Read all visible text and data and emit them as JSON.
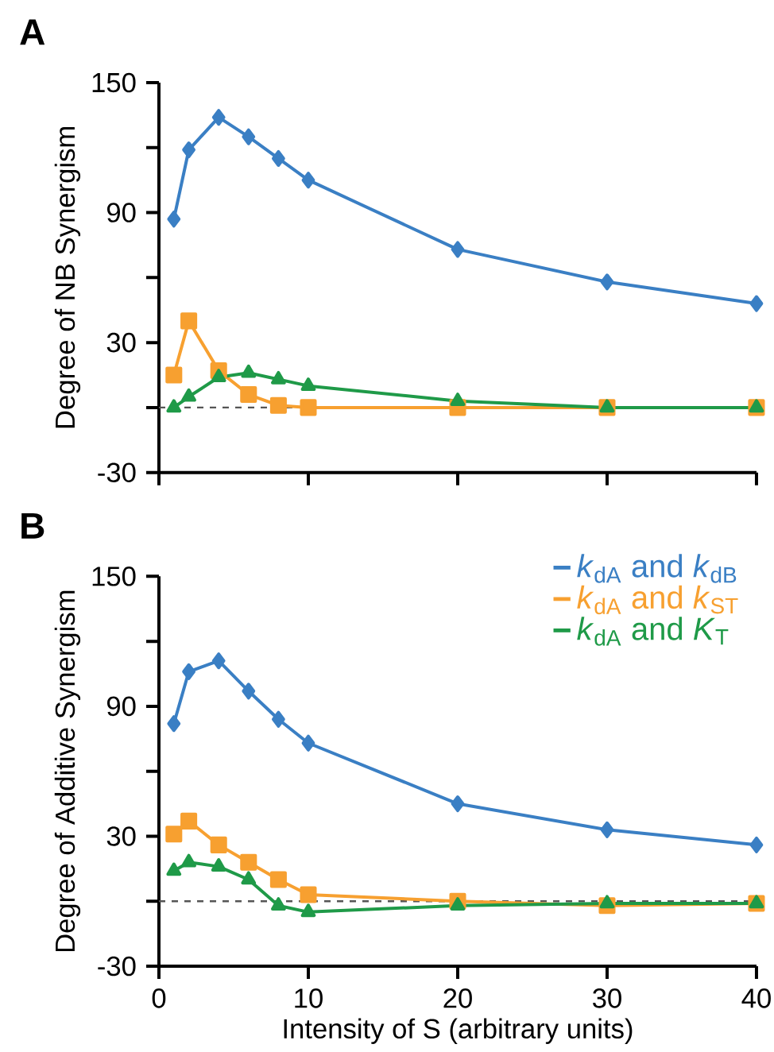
{
  "chart_data": [
    {
      "type": "line",
      "title": "A",
      "ylabel": "Degree of NB Synergism",
      "xlim": [
        0,
        40
      ],
      "xticks": [
        {
          "value": 0,
          "label": null
        },
        {
          "value": 10,
          "label": null
        },
        {
          "value": 20,
          "label": null
        },
        {
          "value": 30,
          "label": null
        },
        {
          "value": 40,
          "label": null
        }
      ],
      "ylim": [
        -30,
        150
      ],
      "yticks": [
        -30,
        {
          "value": 0,
          "label": null
        },
        30,
        {
          "value": 60,
          "label": null
        },
        90,
        {
          "value": 120,
          "label": null
        },
        150
      ],
      "tick_labels": "y",
      "grid": false,
      "legend": false,
      "x": [
        1,
        2,
        4,
        6,
        8,
        10,
        20,
        30,
        40
      ],
      "series": [
        {
          "color": "#3a7fc4",
          "marker": "diamond",
          "values": [
            87,
            119,
            134,
            125,
            115,
            105,
            73,
            58,
            48
          ]
        },
        {
          "color": "#f7a030",
          "marker": "square",
          "values": [
            15,
            40,
            17,
            6,
            1,
            0,
            0,
            0,
            0
          ]
        },
        {
          "color": "#1f9a48",
          "marker": "triangle",
          "values": [
            0,
            5,
            14,
            16,
            13,
            10,
            3,
            0,
            0
          ]
        }
      ],
      "ref_lines": [
        {
          "axis": "y",
          "value": 0,
          "color": "#555555",
          "line_style": "dashed"
        }
      ]
    },
    {
      "type": "line",
      "title": "B",
      "ylabel": "Degree of Additive Synergism",
      "xlabel": "Intensity of S (arbitrary units)",
      "xlim": [
        0,
        40
      ],
      "xticks": [
        0,
        10,
        20,
        30,
        40
      ],
      "ylim": [
        -30,
        150
      ],
      "yticks": [
        -30,
        {
          "value": 0,
          "label": null
        },
        30,
        {
          "value": 60,
          "label": null
        },
        90,
        {
          "value": 120,
          "label": null
        },
        150
      ],
      "grid": false,
      "legend": "top right",
      "x": [
        1,
        2,
        4,
        6,
        8,
        10,
        20,
        30,
        40
      ],
      "series": [
        {
          "name": "*k*$_{dA}$ and *k*$_{dB}$",
          "color": "#3a7fc4",
          "marker": "diamond",
          "values": [
            82,
            106,
            111,
            97,
            84,
            73,
            45,
            33,
            26
          ]
        },
        {
          "name": "*k*$_{dA}$ and *k*$_{ST}$",
          "color": "#f7a030",
          "marker": "square",
          "values": [
            31,
            37,
            26,
            18,
            10,
            3,
            0,
            -2,
            -1
          ]
        },
        {
          "name": "*k*$_{dA}$ and *K*$_{T}$",
          "color": "#1f9a48",
          "marker": "triangle",
          "values": [
            14,
            18,
            16,
            10,
            -2,
            -5,
            -2,
            -1,
            -1
          ]
        }
      ],
      "ref_lines": [
        {
          "axis": "y",
          "value": 0,
          "color": "#555555",
          "line_style": "dashed"
        }
      ]
    }
  ]
}
